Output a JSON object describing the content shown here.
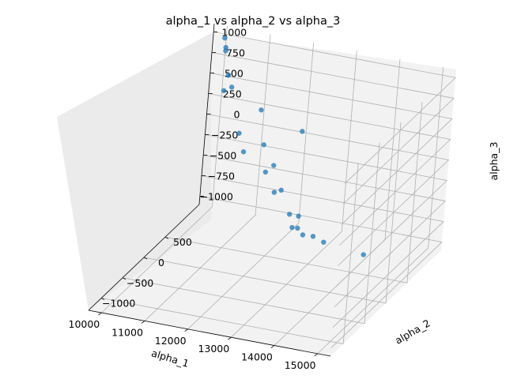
{
  "chart_data": {
    "type": "scatter",
    "title": "alpha_1 vs alpha_2 vs alpha_3",
    "xlabel": "alpha_1",
    "ylabel": "alpha_2",
    "zlabel": "alpha_3",
    "xlim": [
      9700,
      15300
    ],
    "ylim": [
      -1300,
      1300
    ],
    "zlim": [
      -1100,
      1100
    ],
    "xticks": [
      "10000",
      "11000",
      "12000",
      "13000",
      "14000",
      "15000"
    ],
    "yticks": [
      "−1000",
      "−500",
      "0",
      "500"
    ],
    "zticks": [
      "−1000",
      "−750",
      "−500",
      "−250",
      "0",
      "250",
      "500",
      "750",
      "1000"
    ],
    "grid": true,
    "marker_color": "#1f77b4",
    "points": [
      {
        "x": 10067,
        "y": 1189,
        "z": 1017
      },
      {
        "x": 10200,
        "y": 1126,
        "z": 421
      },
      {
        "x": 10276,
        "y": 1003,
        "z": 1015
      },
      {
        "x": 10276,
        "y": 1003,
        "z": 974
      },
      {
        "x": 10378,
        "y": 1014,
        "z": 682
      },
      {
        "x": 10498,
        "y": 988,
        "z": 562
      },
      {
        "x": 10702,
        "y": 1045,
        "z": -7
      },
      {
        "x": 10781,
        "y": 1108,
        "z": -256
      },
      {
        "x": 11112,
        "y": 1101,
        "z": 289
      },
      {
        "x": 11238,
        "y": 1101,
        "z": -121
      },
      {
        "x": 11326,
        "y": 1101,
        "z": -445
      },
      {
        "x": 11476,
        "y": 1199,
        "z": -725
      },
      {
        "x": 11577,
        "y": 1017,
        "z": -298
      },
      {
        "x": 11751,
        "y": 1065,
        "z": -605
      },
      {
        "x": 12003,
        "y": 1045,
        "z": -863
      },
      {
        "x": 12052,
        "y": 1140,
        "z": 103
      },
      {
        "x": 12127,
        "y": 1140,
        "z": -921
      },
      {
        "x": 12150,
        "y": 974,
        "z": -975
      },
      {
        "x": 12202,
        "y": 1057,
        "z": -1019
      },
      {
        "x": 12301,
        "y": 1094,
        "z": -1109
      },
      {
        "x": 12501,
        "y": 1135,
        "z": -1127
      },
      {
        "x": 12777,
        "y": 1108,
        "z": -1157
      },
      {
        "x": 13703,
        "y": 1115,
        "z": -1221
      }
    ]
  }
}
